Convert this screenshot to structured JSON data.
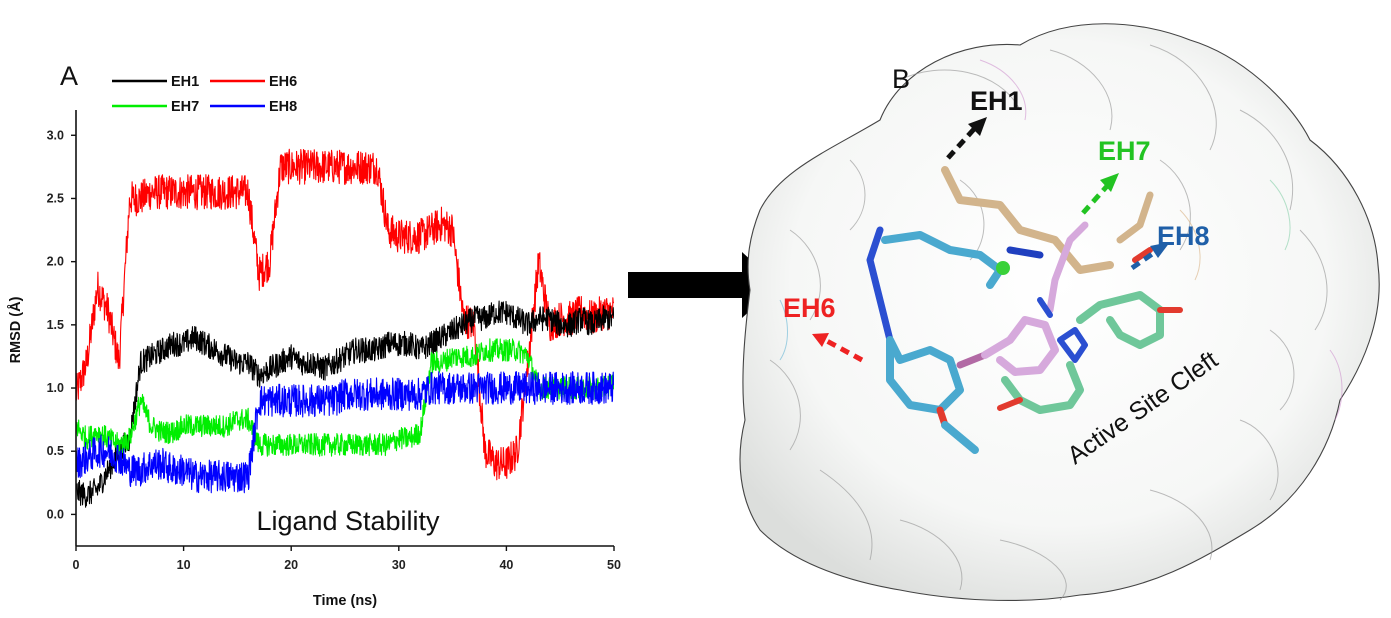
{
  "panel_a": {
    "letter": "A",
    "caption": "Ligand Stability"
  },
  "panel_b": {
    "letter": "B",
    "labels": [
      {
        "text": "EH1",
        "color": "#111111"
      },
      {
        "text": "EH7",
        "color": "#22c322"
      },
      {
        "text": "EH8",
        "color": "#1f5fa8"
      },
      {
        "text": "EH6",
        "color": "#ee2222"
      }
    ],
    "cleft_label": "Active Site Cleft",
    "surface": "molecular surface (white, translucent)",
    "ligand_colors": {
      "EH1": "#d2b48c",
      "EH6": "#4aa9cf",
      "EH7": "#d6a9dc",
      "EH8": "#6fc79a"
    }
  },
  "chart_data": {
    "type": "line",
    "title": "",
    "xlabel": "Time (ns)",
    "ylabel": "RMSD (Å)",
    "xlim": [
      0,
      50
    ],
    "ylim": [
      -0.25,
      3.2
    ],
    "xticks": [
      0,
      10,
      20,
      30,
      40,
      50
    ],
    "yticks": [
      0.0,
      0.5,
      1.0,
      1.5,
      2.0,
      2.5,
      3.0
    ],
    "ytick_labels": [
      "0.0",
      "0.5",
      "1.0",
      "1.5",
      "2.0",
      "2.5",
      "3.0"
    ],
    "legend_position": "top, 2 columns",
    "grid": false,
    "x": [
      0,
      1,
      2,
      3,
      4,
      5,
      6,
      7,
      8,
      9,
      10,
      11,
      12,
      13,
      14,
      15,
      16,
      17,
      18,
      19,
      20,
      21,
      22,
      23,
      24,
      25,
      26,
      27,
      28,
      29,
      30,
      31,
      32,
      33,
      34,
      35,
      36,
      37,
      38,
      39,
      40,
      41,
      42,
      43,
      44,
      45,
      46,
      47,
      48,
      49,
      50
    ],
    "series": [
      {
        "name": "EH1",
        "color": "#000000",
        "noise": 0.1,
        "values": [
          0.18,
          0.15,
          0.2,
          0.35,
          0.5,
          0.6,
          1.2,
          1.25,
          1.3,
          1.35,
          1.35,
          1.4,
          1.35,
          1.3,
          1.25,
          1.2,
          1.2,
          1.1,
          1.15,
          1.2,
          1.25,
          1.2,
          1.2,
          1.15,
          1.2,
          1.25,
          1.3,
          1.3,
          1.3,
          1.35,
          1.35,
          1.35,
          1.3,
          1.35,
          1.4,
          1.45,
          1.5,
          1.55,
          1.55,
          1.6,
          1.6,
          1.55,
          1.5,
          1.55,
          1.55,
          1.5,
          1.5,
          1.55,
          1.5,
          1.55,
          1.55
        ]
      },
      {
        "name": "EH6",
        "color": "#ff0000",
        "noise": 0.14,
        "values": [
          0.95,
          1.2,
          1.8,
          1.6,
          1.2,
          2.5,
          2.5,
          2.55,
          2.55,
          2.55,
          2.55,
          2.55,
          2.55,
          2.55,
          2.55,
          2.55,
          2.55,
          1.9,
          2.0,
          2.75,
          2.75,
          2.75,
          2.75,
          2.75,
          2.75,
          2.75,
          2.75,
          2.75,
          2.75,
          2.25,
          2.2,
          2.2,
          2.2,
          2.25,
          2.3,
          2.25,
          1.55,
          1.5,
          0.5,
          0.4,
          0.4,
          0.5,
          1.2,
          2.0,
          1.5,
          1.55,
          1.55,
          1.6,
          1.55,
          1.6,
          1.6
        ]
      },
      {
        "name": "EH7",
        "color": "#00ee00",
        "noise": 0.09,
        "values": [
          0.7,
          0.6,
          0.65,
          0.6,
          0.55,
          0.6,
          0.9,
          0.7,
          0.65,
          0.65,
          0.7,
          0.7,
          0.7,
          0.7,
          0.7,
          0.75,
          0.75,
          0.55,
          0.55,
          0.55,
          0.55,
          0.55,
          0.55,
          0.55,
          0.55,
          0.55,
          0.55,
          0.55,
          0.55,
          0.55,
          0.6,
          0.6,
          0.65,
          1.2,
          1.2,
          1.25,
          1.25,
          1.25,
          1.3,
          1.3,
          1.3,
          1.3,
          1.25,
          1.0,
          1.0,
          1.0,
          1.0,
          1.0,
          1.0,
          1.0,
          1.05
        ]
      },
      {
        "name": "EH8",
        "color": "#0000ff",
        "noise": 0.13,
        "values": [
          0.4,
          0.45,
          0.5,
          0.5,
          0.45,
          0.35,
          0.35,
          0.4,
          0.4,
          0.35,
          0.35,
          0.3,
          0.3,
          0.3,
          0.3,
          0.3,
          0.3,
          0.9,
          0.9,
          0.9,
          0.9,
          0.9,
          0.9,
          0.9,
          0.9,
          0.95,
          0.95,
          0.95,
          0.95,
          0.95,
          0.95,
          0.95,
          0.95,
          1.0,
          1.0,
          1.0,
          1.0,
          1.0,
          1.0,
          1.0,
          1.0,
          1.0,
          1.0,
          1.0,
          1.0,
          1.0,
          1.0,
          1.0,
          1.0,
          1.0,
          1.0
        ]
      }
    ]
  }
}
